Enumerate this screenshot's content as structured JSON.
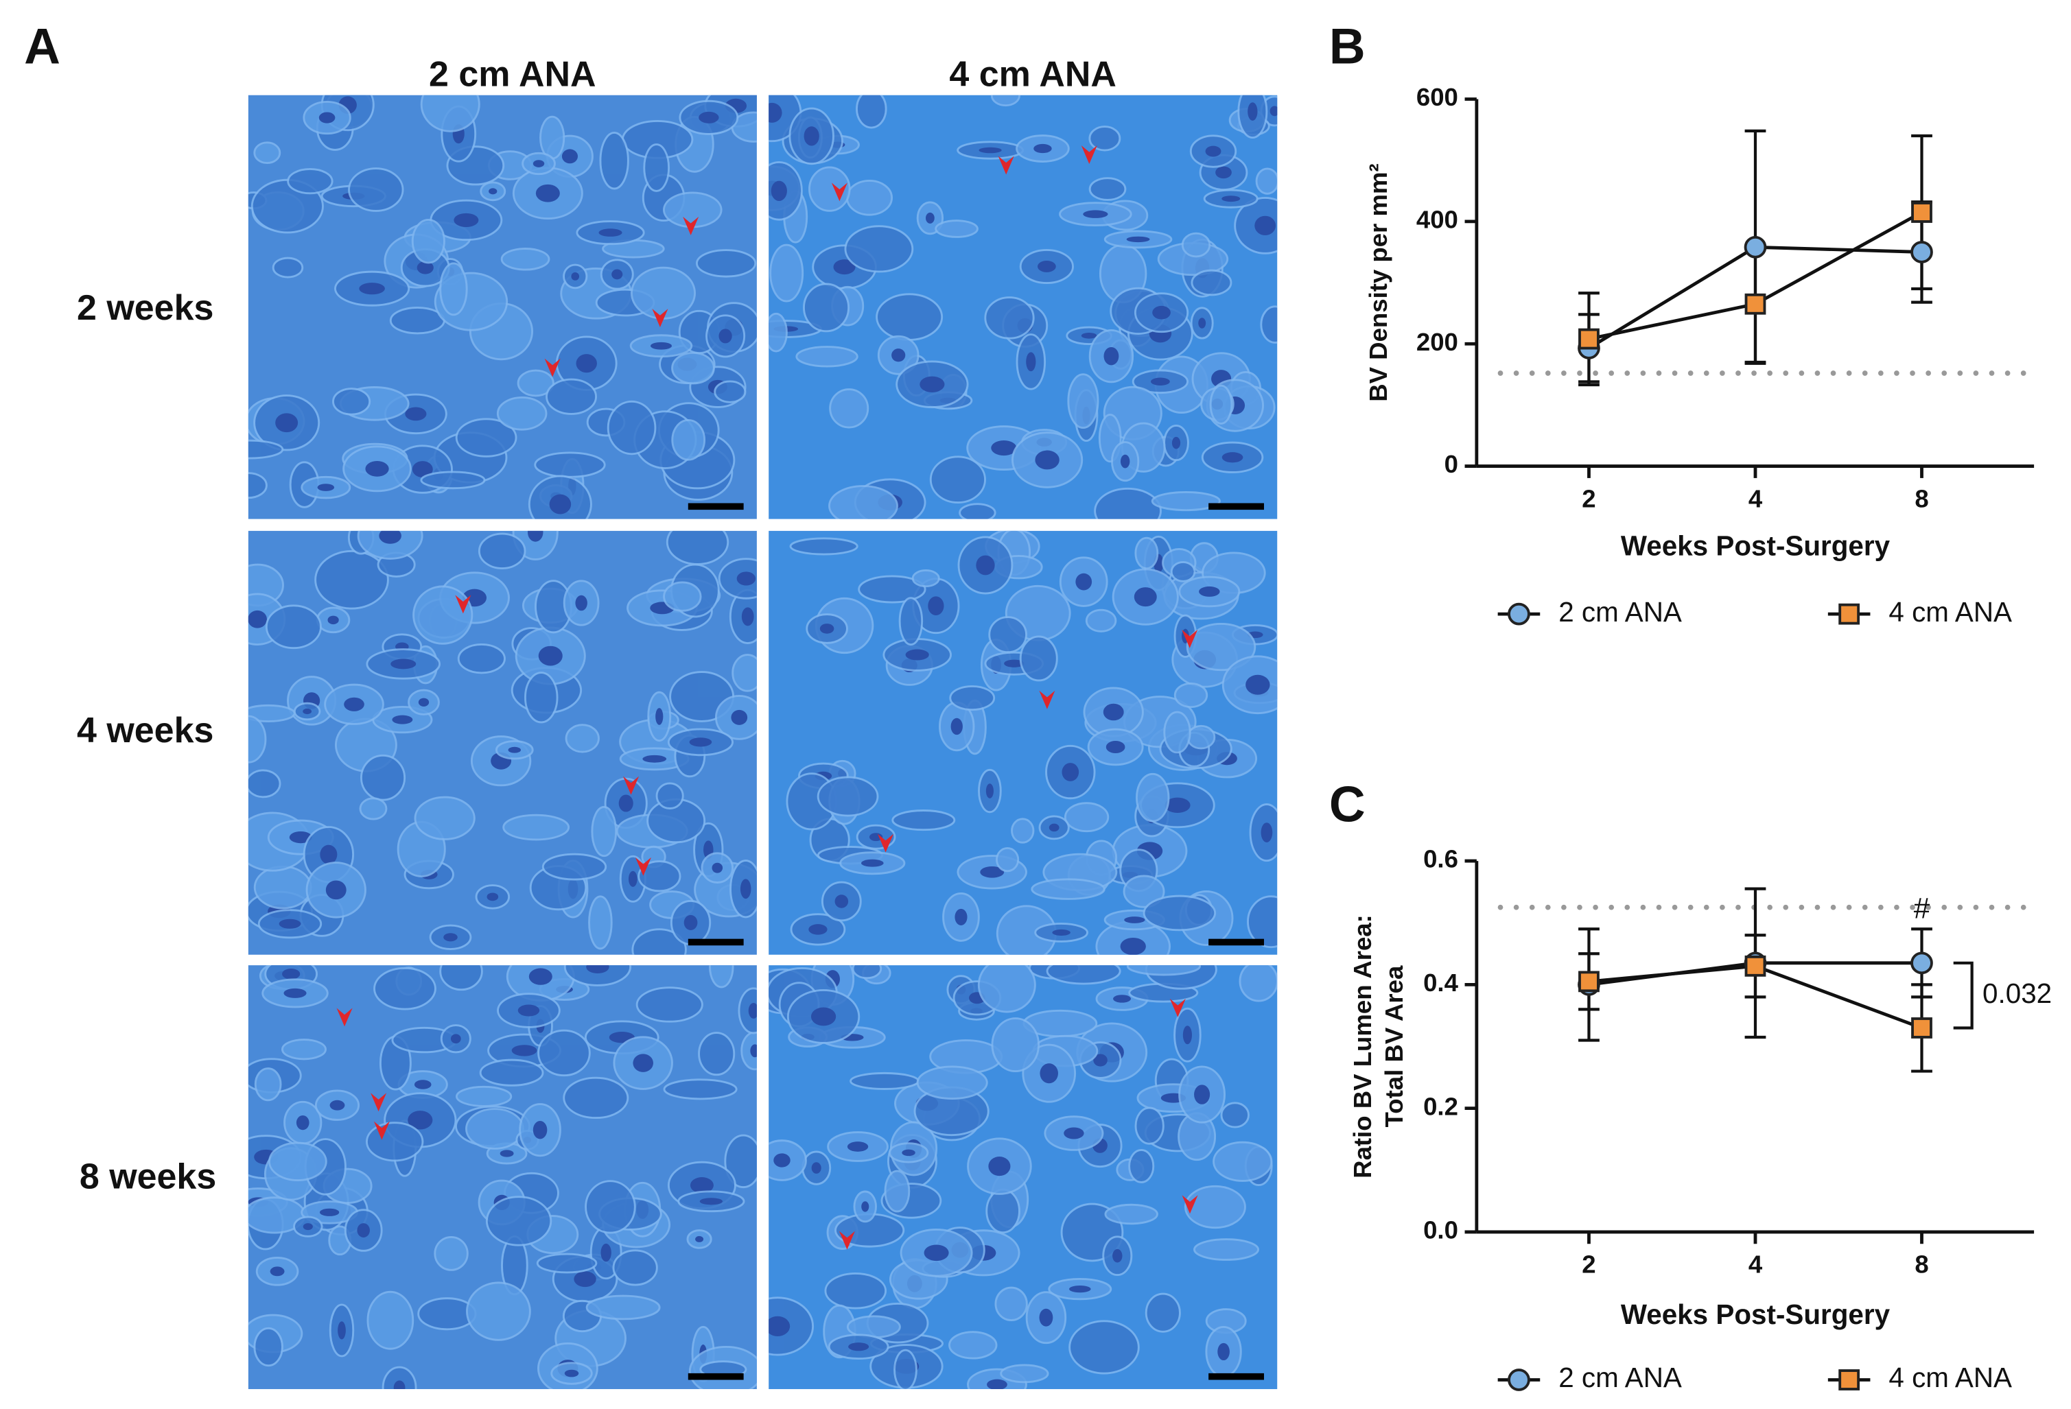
{
  "panels": {
    "a": "A",
    "b": "B",
    "c": "C"
  },
  "panel_a": {
    "columns": [
      "2 cm ANA",
      "4 cm ANA"
    ],
    "rows": [
      "2 weeks",
      "4 weeks",
      "8 weeks"
    ]
  },
  "chart_data": [
    {
      "type": "line",
      "x_title": "Weeks Post-Surgery",
      "y_title": [
        "BV Density per mm²"
      ],
      "categories": [
        "2",
        "4",
        "8"
      ],
      "ylim": [
        0,
        600
      ],
      "yticks": [
        0,
        200,
        400,
        600
      ],
      "reference_line": 152,
      "series": [
        {
          "name": "2 cm ANA",
          "color": "#7aaee0",
          "marker": "circle",
          "values": [
            193,
            358,
            350
          ],
          "errors": [
            55,
            190,
            82
          ]
        },
        {
          "name": "4 cm ANA",
          "color": "#f0913a",
          "marker": "square",
          "values": [
            208,
            265,
            415
          ],
          "errors": [
            75,
            95,
            125
          ]
        }
      ]
    },
    {
      "type": "line",
      "x_title": "Weeks Post-Surgery",
      "y_title": [
        "Ratio BV Lumen Area:",
        "Total BV Area"
      ],
      "categories": [
        "2",
        "4",
        "8"
      ],
      "ylim": [
        0,
        0.6
      ],
      "yticks": [
        {
          "value": 0,
          "label": "0.0"
        },
        0.2,
        0.4,
        0.6
      ],
      "reference_line": 0.525,
      "annotation": "#",
      "bracket_label": "0.032",
      "series": [
        {
          "name": "2 cm ANA",
          "color": "#7aaee0",
          "marker": "circle",
          "values": [
            0.4,
            0.435,
            0.435
          ],
          "errors": [
            0.09,
            0.12,
            0.055
          ]
        },
        {
          "name": "4 cm ANA",
          "color": "#f0913a",
          "marker": "square",
          "values": [
            0.405,
            0.43,
            0.33
          ],
          "errors": [
            0.045,
            0.05,
            0.07
          ]
        }
      ]
    }
  ]
}
